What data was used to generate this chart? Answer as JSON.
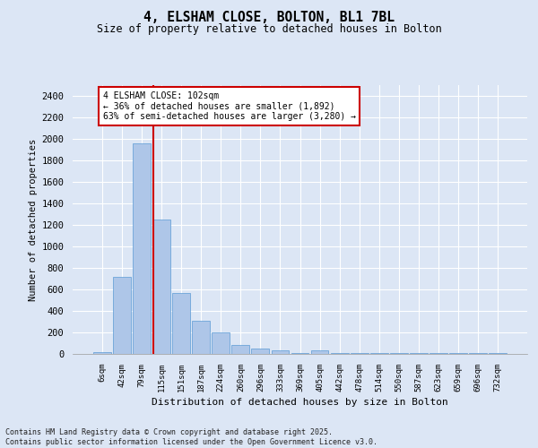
{
  "title_line1": "4, ELSHAM CLOSE, BOLTON, BL1 7BL",
  "title_line2": "Size of property relative to detached houses in Bolton",
  "xlabel": "Distribution of detached houses by size in Bolton",
  "ylabel": "Number of detached properties",
  "categories": [
    "6sqm",
    "42sqm",
    "79sqm",
    "115sqm",
    "151sqm",
    "187sqm",
    "224sqm",
    "260sqm",
    "296sqm",
    "333sqm",
    "369sqm",
    "405sqm",
    "442sqm",
    "478sqm",
    "514sqm",
    "550sqm",
    "587sqm",
    "623sqm",
    "659sqm",
    "696sqm",
    "732sqm"
  ],
  "values": [
    15,
    715,
    1960,
    1250,
    570,
    305,
    200,
    85,
    50,
    35,
    10,
    35,
    5,
    5,
    5,
    5,
    5,
    5,
    5,
    5,
    5
  ],
  "bar_color": "#aec6e8",
  "bar_edge_color": "#5b9bd5",
  "vline_color": "#cc0000",
  "annotation_text": "4 ELSHAM CLOSE: 102sqm\n← 36% of detached houses are smaller (1,892)\n63% of semi-detached houses are larger (3,280) →",
  "annotation_box_color": "#ffffff",
  "annotation_box_edge": "#cc0000",
  "background_color": "#dce6f5",
  "fig_background_color": "#dce6f5",
  "grid_color": "#ffffff",
  "ylim": [
    0,
    2500
  ],
  "yticks": [
    0,
    200,
    400,
    600,
    800,
    1000,
    1200,
    1400,
    1600,
    1800,
    2000,
    2200,
    2400
  ],
  "footnote": "Contains HM Land Registry data © Crown copyright and database right 2025.\nContains public sector information licensed under the Open Government Licence v3.0."
}
